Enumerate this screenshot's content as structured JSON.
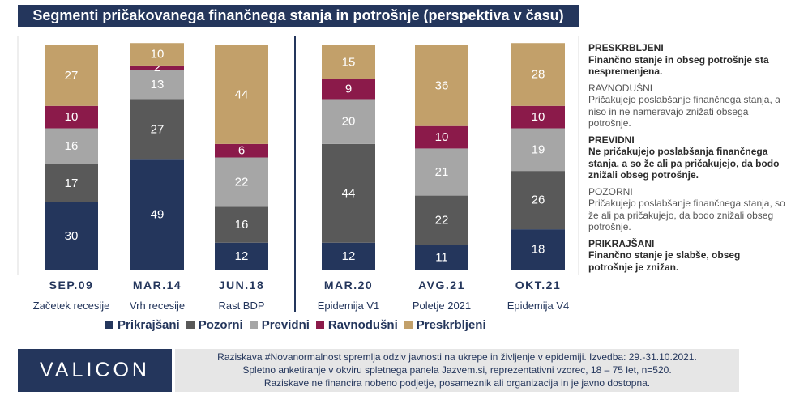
{
  "title": "Segmenti pričakovanega  finančnega stanja in potrošnje  (perspektiva v času)",
  "chart_data": {
    "type": "bar",
    "stacked": true,
    "categories": [
      "SEP.09",
      "MAR.14",
      "JUN.18",
      "MAR.20",
      "AVG.21",
      "OKT.21"
    ],
    "category_subtitles": [
      "Začetek recesije",
      "Vrh recesije",
      "Rast BDP",
      "Epidemija V1",
      "Poletje 2021",
      "Epidemija V4"
    ],
    "series": [
      {
        "name": "Prikrajšani",
        "color": "#24365c",
        "text_color": "#ffffff",
        "values": [
          30,
          49,
          12,
          12,
          11,
          18
        ]
      },
      {
        "name": "Pozorni",
        "color": "#595959",
        "text_color": "#ffffff",
        "values": [
          17,
          27,
          16,
          44,
          22,
          26
        ]
      },
      {
        "name": "Previdni",
        "color": "#a6a6a6",
        "text_color": "#ffffff",
        "values": [
          16,
          13,
          22,
          20,
          21,
          19
        ]
      },
      {
        "name": "Ravnodušni",
        "color": "#8b1a4a",
        "text_color": "#ffffff",
        "values": [
          10,
          2,
          6,
          9,
          10,
          10
        ]
      },
      {
        "name": "Preskrbljeni",
        "color": "#c2a06a",
        "text_color": "#ffffff",
        "values": [
          27,
          10,
          44,
          15,
          36,
          28
        ]
      }
    ],
    "ylim": [
      0,
      100
    ],
    "divider_after_category": 2,
    "grid": false,
    "legend": "bottom"
  },
  "legend_items": [
    {
      "label": "Prikrajšani",
      "color": "#24365c"
    },
    {
      "label": "Pozorni",
      "color": "#595959"
    },
    {
      "label": "Previdni",
      "color": "#a6a6a6"
    },
    {
      "label": "Ravnodušni",
      "color": "#8b1a4a"
    },
    {
      "label": "Preskrbljeni",
      "color": "#c2a06a"
    }
  ],
  "definitions": [
    {
      "name": "PRESKRBLJENI",
      "text": "Finančno stanje in obseg potrošnje sta nespremenjena.",
      "bold": true
    },
    {
      "name": "RAVNODUŠNI",
      "text": "Pričakujejo poslabšanje finančnega stanja, a niso in ne nameravajo znižati obsega potrošnje.",
      "bold": false
    },
    {
      "name": "PREVIDNI",
      "text": "Ne pričakujejo poslabšanja finančnega stanja, a so že ali pa pričakujejo, da bodo znižali obseg potrošnje.",
      "bold": true
    },
    {
      "name": "POZORNI",
      "text": "Pričakujejo poslabšanje finančnega stanja, so že ali pa pričakujejo, da bodo znižali obseg potrošnje.",
      "bold": false
    },
    {
      "name": "PRIKRAJŠANI",
      "text": "Finančno stanje je slabše, obseg potrošnje je znižan.",
      "bold": true
    }
  ],
  "footer": {
    "logo": "VALICON",
    "lines": [
      "Raziskava #Novanormalnost spremlja odziv javnosti na ukrepe in življenje v epidemiji. Izvedba: 29.-31.10.2021.",
      "Spletno anketiranje v okviru spletnega panela Jazvem.si, reprezentativni vzorec, 18 – 75 let, n=520.",
      "Raziskave ne financira nobeno podjetje, posameznik ali organizacija in je javno dostopna."
    ]
  }
}
